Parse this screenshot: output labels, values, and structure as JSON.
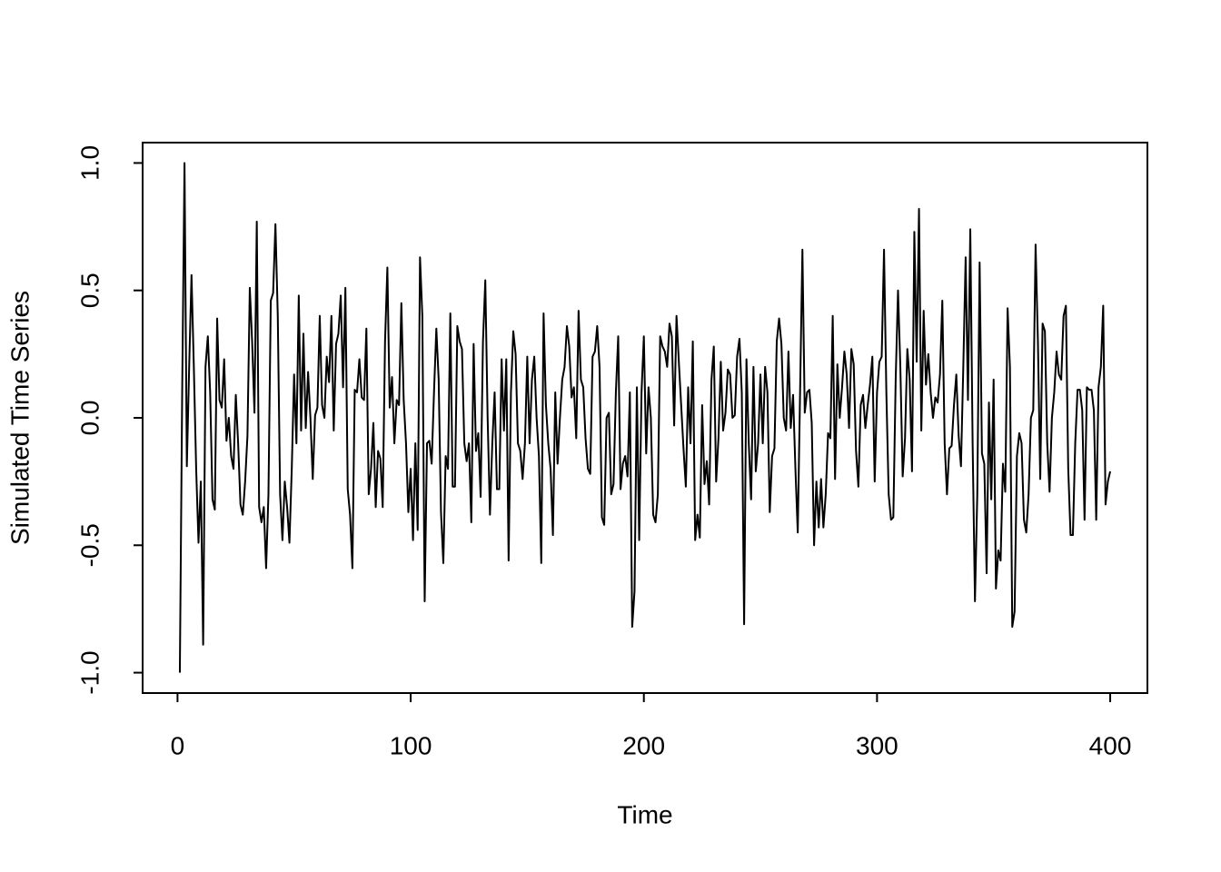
{
  "chart_data": {
    "type": "line",
    "xlabel": "Time",
    "ylabel": "Simulated Time Series",
    "color": "#000000",
    "xlim": [
      -14.96,
      415.96
    ],
    "ylim": [
      -1.08,
      1.08
    ],
    "xticks": [
      0,
      100,
      200,
      300,
      400
    ],
    "yticks": [
      {
        "value": -1,
        "label": "-1.0"
      },
      -0.5,
      {
        "value": 0,
        "label": "0.0"
      },
      0.5,
      {
        "value": 1,
        "label": "1.0"
      }
    ],
    "x": [
      1,
      2,
      3,
      4,
      5,
      6,
      7,
      8,
      9,
      10,
      11,
      12,
      13,
      14,
      15,
      16,
      17,
      18,
      19,
      20,
      21,
      22,
      23,
      24,
      25,
      26,
      27,
      28,
      29,
      30,
      31,
      32,
      33,
      34,
      35,
      36,
      37,
      38,
      39,
      40,
      41,
      42,
      43,
      44,
      45,
      46,
      47,
      48,
      49,
      50,
      51,
      52,
      53,
      54,
      55,
      56,
      57,
      58,
      59,
      60,
      61,
      62,
      63,
      64,
      65,
      66,
      67,
      68,
      69,
      70,
      71,
      72,
      73,
      74,
      75,
      76,
      77,
      78,
      79,
      80,
      81,
      82,
      83,
      84,
      85,
      86,
      87,
      88,
      89,
      90,
      91,
      92,
      93,
      94,
      95,
      96,
      97,
      98,
      99,
      100,
      101,
      102,
      103,
      104,
      105,
      106,
      107,
      108,
      109,
      110,
      111,
      112,
      113,
      114,
      115,
      116,
      117,
      118,
      119,
      120,
      121,
      122,
      123,
      124,
      125,
      126,
      127,
      128,
      129,
      130,
      131,
      132,
      133,
      134,
      135,
      136,
      137,
      138,
      139,
      140,
      141,
      142,
      143,
      144,
      145,
      146,
      147,
      148,
      149,
      150,
      151,
      152,
      153,
      154,
      155,
      156,
      157,
      158,
      159,
      160,
      161,
      162,
      163,
      164,
      165,
      166,
      167,
      168,
      169,
      170,
      171,
      172,
      173,
      174,
      175,
      176,
      177,
      178,
      179,
      180,
      181,
      182,
      183,
      184,
      185,
      186,
      187,
      188,
      189,
      190,
      191,
      192,
      193,
      194,
      195,
      196,
      197,
      198,
      199,
      200,
      201,
      202,
      203,
      204,
      205,
      206,
      207,
      208,
      209,
      210,
      211,
      212,
      213,
      214,
      215,
      216,
      217,
      218,
      219,
      220,
      221,
      222,
      223,
      224,
      225,
      226,
      227,
      228,
      229,
      230,
      231,
      232,
      233,
      234,
      235,
      236,
      237,
      238,
      239,
      240,
      241,
      242,
      243,
      244,
      245,
      246,
      247,
      248,
      249,
      250,
      251,
      252,
      253,
      254,
      255,
      256,
      257,
      258,
      259,
      260,
      261,
      262,
      263,
      264,
      265,
      266,
      267,
      268,
      269,
      270,
      271,
      272,
      273,
      274,
      275,
      276,
      277,
      278,
      279,
      280,
      281,
      282,
      283,
      284,
      285,
      286,
      287,
      288,
      289,
      290,
      291,
      292,
      293,
      294,
      295,
      296,
      297,
      298,
      299,
      300,
      301,
      302,
      303,
      304,
      305,
      306,
      307,
      308,
      309,
      310,
      311,
      312,
      313,
      314,
      315,
      316,
      317,
      318,
      319,
      320,
      321,
      322,
      323,
      324,
      325,
      326,
      327,
      328,
      329,
      330,
      331,
      332,
      333,
      334,
      335,
      336,
      337,
      338,
      339,
      340,
      341,
      342,
      343,
      344,
      345,
      346,
      347,
      348,
      349,
      350,
      351,
      352,
      353,
      354,
      355,
      356,
      357,
      358,
      359,
      360,
      361,
      362,
      363,
      364,
      365,
      366,
      367,
      368,
      369,
      370,
      371,
      372,
      373,
      374,
      375,
      376,
      377,
      378,
      379,
      380,
      381,
      382,
      383,
      384,
      385,
      386,
      387,
      388,
      389,
      390,
      391,
      392,
      393,
      394,
      395,
      396,
      397,
      398,
      399,
      400
    ],
    "values": [
      -1.0,
      0.1,
      1.0,
      -0.19,
      0.2,
      0.56,
      0.2,
      -0.2,
      -0.49,
      -0.25,
      -0.89,
      0.2,
      0.32,
      0.1,
      -0.32,
      -0.36,
      0.39,
      0.07,
      0.04,
      0.23,
      -0.09,
      0.0,
      -0.15,
      -0.2,
      0.09,
      -0.1,
      -0.34,
      -0.38,
      -0.25,
      -0.07,
      0.51,
      0.3,
      0.02,
      0.77,
      -0.35,
      -0.41,
      -0.35,
      -0.59,
      -0.3,
      0.46,
      0.49,
      0.76,
      0.4,
      -0.3,
      -0.48,
      -0.25,
      -0.35,
      -0.49,
      -0.2,
      0.17,
      -0.1,
      0.48,
      -0.05,
      0.33,
      -0.04,
      0.18,
      0.0,
      -0.24,
      0.01,
      0.04,
      0.4,
      0.05,
      0.0,
      0.24,
      0.14,
      0.4,
      -0.05,
      0.29,
      0.33,
      0.48,
      0.12,
      0.51,
      -0.28,
      -0.38,
      -0.59,
      0.11,
      0.1,
      0.23,
      0.08,
      0.07,
      0.35,
      -0.3,
      -0.2,
      -0.02,
      -0.35,
      -0.13,
      -0.16,
      -0.35,
      0.3,
      0.59,
      0.04,
      0.16,
      -0.1,
      0.07,
      0.05,
      0.45,
      0.07,
      -0.1,
      -0.37,
      -0.2,
      -0.48,
      -0.1,
      -0.44,
      0.63,
      0.4,
      -0.72,
      -0.1,
      -0.09,
      -0.18,
      0.1,
      0.35,
      0.15,
      -0.37,
      -0.57,
      -0.15,
      -0.2,
      0.41,
      -0.27,
      -0.27,
      0.36,
      0.3,
      0.27,
      -0.1,
      -0.17,
      -0.1,
      -0.41,
      0.29,
      -0.13,
      -0.06,
      -0.31,
      0.3,
      0.54,
      0.0,
      -0.38,
      -0.1,
      0.1,
      -0.28,
      -0.28,
      0.23,
      -0.05,
      0.23,
      -0.56,
      0.1,
      0.34,
      0.25,
      -0.1,
      -0.13,
      -0.24,
      -0.1,
      0.24,
      -0.1,
      0.15,
      0.24,
      0.0,
      -0.15,
      -0.57,
      0.41,
      0.05,
      -0.1,
      -0.2,
      -0.46,
      0.1,
      -0.18,
      0.0,
      0.15,
      0.2,
      0.36,
      0.28,
      0.08,
      0.12,
      -0.08,
      0.42,
      0.15,
      0.12,
      -0.08,
      -0.2,
      -0.22,
      0.24,
      0.26,
      0.36,
      0.2,
      -0.39,
      -0.42,
      0.0,
      0.02,
      -0.3,
      -0.26,
      0.1,
      0.32,
      -0.28,
      -0.18,
      -0.15,
      -0.23,
      0.1,
      -0.82,
      -0.68,
      0.12,
      -0.48,
      0.1,
      0.32,
      -0.14,
      0.12,
      0.0,
      -0.38,
      -0.41,
      -0.3,
      0.32,
      0.28,
      0.26,
      0.2,
      0.37,
      0.32,
      -0.03,
      0.4,
      0.22,
      0.05,
      -0.12,
      -0.27,
      0.12,
      -0.1,
      0.3,
      -0.48,
      -0.38,
      -0.47,
      0.05,
      -0.26,
      -0.17,
      -0.34,
      0.15,
      0.28,
      -0.25,
      -0.08,
      0.22,
      -0.05,
      0.02,
      0.19,
      0.17,
      0.0,
      0.01,
      0.24,
      0.31,
      0.1,
      -0.81,
      0.23,
      -0.1,
      -0.32,
      0.2,
      -0.21,
      -0.1,
      0.17,
      -0.1,
      0.2,
      0.1,
      -0.37,
      -0.15,
      -0.12,
      0.3,
      0.39,
      0.29,
      0.0,
      -0.05,
      0.26,
      -0.04,
      0.09,
      -0.2,
      -0.45,
      0.1,
      0.66,
      0.02,
      0.1,
      0.11,
      -0.02,
      -0.5,
      -0.25,
      -0.43,
      -0.24,
      -0.43,
      -0.3,
      -0.06,
      -0.08,
      0.4,
      -0.24,
      0.21,
      0.0,
      0.12,
      0.26,
      0.17,
      -0.04,
      0.27,
      0.21,
      -0.13,
      -0.27,
      0.05,
      0.09,
      -0.04,
      0.05,
      0.13,
      0.24,
      -0.25,
      0.1,
      0.22,
      0.24,
      0.66,
      0.1,
      -0.3,
      -0.4,
      -0.39,
      0.15,
      0.5,
      0.2,
      -0.23,
      -0.08,
      0.27,
      0.15,
      -0.21,
      0.73,
      0.22,
      0.82,
      -0.05,
      0.42,
      0.13,
      0.25,
      0.1,
      0.0,
      0.08,
      0.06,
      0.17,
      0.46,
      -0.1,
      -0.3,
      -0.12,
      -0.11,
      0.05,
      0.17,
      -0.07,
      -0.19,
      0.2,
      0.63,
      0.07,
      0.74,
      -0.1,
      -0.72,
      -0.3,
      0.61,
      -0.14,
      -0.18,
      -0.61,
      0.06,
      -0.32,
      0.15,
      -0.67,
      -0.52,
      -0.56,
      -0.18,
      -0.29,
      0.43,
      0.2,
      -0.82,
      -0.76,
      -0.15,
      -0.06,
      -0.1,
      -0.4,
      -0.45,
      -0.3,
      0.0,
      0.03,
      0.68,
      0.3,
      -0.24,
      0.37,
      0.34,
      -0.1,
      -0.29,
      0.0,
      0.1,
      0.26,
      0.17,
      0.15,
      0.4,
      0.44,
      -0.2,
      -0.46,
      -0.46,
      -0.1,
      0.11,
      0.11,
      0.03,
      -0.4,
      0.12,
      0.11,
      0.11,
      0.03,
      -0.4,
      0.12,
      0.2,
      0.44,
      -0.34,
      -0.25,
      -0.21
    ]
  }
}
